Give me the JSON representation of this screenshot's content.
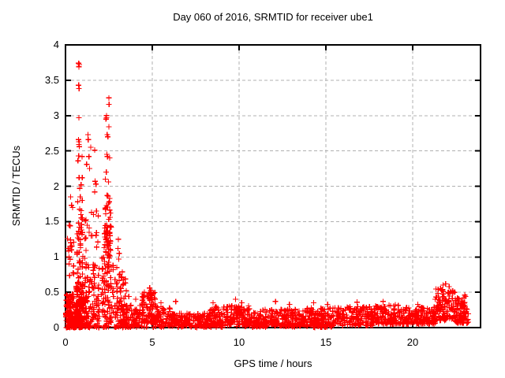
{
  "chart_data": {
    "type": "scatter",
    "title": "Day 060 of 2016, SRMTID for receiver ube1",
    "xlabel": "GPS time / hours",
    "ylabel": "SRMTID / TECUs",
    "series_name": "SRMTID",
    "xlim": [
      0,
      23.91
    ],
    "ylim": [
      0,
      4
    ],
    "xticks": [
      0,
      5,
      10,
      15,
      20
    ],
    "xtick_labels": [
      "0",
      "5",
      "10",
      "15",
      "20"
    ],
    "yticks": [
      0,
      0.5,
      1,
      1.5,
      2,
      2.5,
      3,
      3.5,
      4
    ],
    "ytick_labels": [
      "0",
      "0.5",
      "1",
      "1.5",
      "2",
      "2.5",
      "3",
      "3.5",
      "4"
    ],
    "grid": true,
    "legend_position": "none",
    "marker": {
      "shape": "plus",
      "size": 7,
      "color": "#ff0000"
    },
    "colors": {
      "marker": "#ff0000",
      "grid": "#b0b0b0",
      "axis": "#000000",
      "background": "#ffffff",
      "text": "#000000"
    },
    "notable_points": [
      [
        0.76,
        3.74
      ],
      [
        0.79,
        3.72
      ],
      [
        0.77,
        3.69
      ],
      [
        0.76,
        3.43
      ],
      [
        0.78,
        3.38
      ],
      [
        0.77,
        2.97
      ],
      [
        0.75,
        2.66
      ],
      [
        0.78,
        2.63
      ],
      [
        0.77,
        2.59
      ],
      [
        0.79,
        2.56
      ],
      [
        0.76,
        2.43
      ],
      [
        0.95,
        2.42
      ],
      [
        0.72,
        2.36
      ],
      [
        0.78,
        2.12
      ],
      [
        0.9,
        2.02
      ],
      [
        0.82,
        1.97
      ],
      [
        0.85,
        1.85
      ],
      [
        0.7,
        1.78
      ],
      [
        0.88,
        1.6
      ],
      [
        0.92,
        1.55
      ],
      [
        0.75,
        1.48
      ],
      [
        0.8,
        1.42
      ],
      [
        0.3,
        1.85
      ],
      [
        0.35,
        1.73
      ],
      [
        0.41,
        1.7
      ],
      [
        0.22,
        1.45
      ],
      [
        0.27,
        1.44
      ],
      [
        0.12,
        1.26
      ],
      [
        0.3,
        1.24
      ],
      [
        0.15,
        1.12
      ],
      [
        0.35,
        1.1
      ],
      [
        0.2,
        1.0
      ],
      [
        1.3,
        2.73
      ],
      [
        1.31,
        2.66
      ],
      [
        1.45,
        2.55
      ],
      [
        1.68,
        2.51
      ],
      [
        1.35,
        2.42
      ],
      [
        1.22,
        2.31
      ],
      [
        1.38,
        2.25
      ],
      [
        1.7,
        2.07
      ],
      [
        1.76,
        2.03
      ],
      [
        1.68,
        1.92
      ],
      [
        1.78,
        1.65
      ],
      [
        1.5,
        1.63
      ],
      [
        1.62,
        1.6
      ],
      [
        1.88,
        1.58
      ],
      [
        1.25,
        1.45
      ],
      [
        1.55,
        1.3
      ],
      [
        2.5,
        3.25
      ],
      [
        2.51,
        3.16
      ],
      [
        2.36,
        3.0
      ],
      [
        2.37,
        2.97
      ],
      [
        2.33,
        2.95
      ],
      [
        2.5,
        2.84
      ],
      [
        2.4,
        2.73
      ],
      [
        2.44,
        2.7
      ],
      [
        2.38,
        2.45
      ],
      [
        2.42,
        2.42
      ],
      [
        2.55,
        2.4
      ],
      [
        2.35,
        2.2
      ],
      [
        2.3,
        2.1
      ],
      [
        2.48,
        2.06
      ],
      [
        2.4,
        1.87
      ],
      [
        2.45,
        1.86
      ],
      [
        2.53,
        1.78
      ],
      [
        2.6,
        1.62
      ],
      [
        3.05,
        1.25
      ],
      [
        3.02,
        1.12
      ],
      [
        3.1,
        1.05
      ],
      [
        3.07,
        0.97
      ],
      [
        2.95,
        0.85
      ],
      [
        3.2,
        0.72
      ],
      [
        3.3,
        0.6
      ],
      [
        3.15,
        0.55
      ],
      [
        3.5,
        0.52
      ],
      [
        3.65,
        0.44
      ],
      [
        4.05,
        0.4
      ],
      [
        4.85,
        0.56
      ],
      [
        4.9,
        0.53
      ],
      [
        4.95,
        0.5
      ],
      [
        4.8,
        0.48
      ],
      [
        5.5,
        0.35
      ],
      [
        6.35,
        0.37
      ],
      [
        8.5,
        0.35
      ],
      [
        9.8,
        0.4
      ],
      [
        10.15,
        0.35
      ],
      [
        12.1,
        0.37
      ],
      [
        12.9,
        0.33
      ],
      [
        14.3,
        0.35
      ],
      [
        15.1,
        0.33
      ],
      [
        16.8,
        0.36
      ],
      [
        18.3,
        0.37
      ],
      [
        20.3,
        0.33
      ],
      [
        21.6,
        0.55
      ],
      [
        21.75,
        0.6
      ],
      [
        21.9,
        0.62
      ],
      [
        22.1,
        0.58
      ],
      [
        22.3,
        0.52
      ],
      [
        22.85,
        0.38
      ],
      [
        22.95,
        0.42
      ],
      [
        23.0,
        0.46
      ],
      [
        23.05,
        0.44
      ]
    ],
    "dense_bands": [
      [
        0.02,
        0.55,
        0.0,
        0.48,
        110,
        1.6
      ],
      [
        0.05,
        0.5,
        0.5,
        1.3,
        12,
        1.0
      ],
      [
        0.6,
        1.05,
        0.04,
        0.65,
        130,
        1.4
      ],
      [
        0.62,
        1.02,
        0.65,
        1.35,
        28,
        1.0
      ],
      [
        0.7,
        1.0,
        1.35,
        2.2,
        12,
        1.0
      ],
      [
        1.08,
        1.95,
        0.05,
        0.9,
        95,
        1.5
      ],
      [
        1.1,
        1.9,
        0.9,
        1.55,
        14,
        1.0
      ],
      [
        2.05,
        2.78,
        0.05,
        1.0,
        85,
        1.2
      ],
      [
        2.2,
        2.65,
        1.0,
        1.45,
        48,
        1.0
      ],
      [
        2.25,
        2.6,
        1.45,
        2.0,
        12,
        1.0
      ],
      [
        2.85,
        3.45,
        0.04,
        0.8,
        60,
        1.5
      ],
      [
        3.4,
        4.3,
        0.02,
        0.32,
        75,
        1.3
      ],
      [
        4.4,
        5.25,
        0.06,
        0.5,
        95,
        1.2
      ],
      [
        5.25,
        6.1,
        0.02,
        0.3,
        70,
        1.6
      ],
      [
        6.1,
        8.3,
        0.02,
        0.2,
        170,
        1.5
      ],
      [
        8.3,
        9.4,
        0.03,
        0.3,
        100,
        1.6
      ],
      [
        9.4,
        10.6,
        0.04,
        0.32,
        110,
        1.6
      ],
      [
        10.6,
        13.6,
        0.02,
        0.26,
        230,
        1.7
      ],
      [
        13.6,
        16.2,
        0.03,
        0.28,
        200,
        1.7
      ],
      [
        16.2,
        17.8,
        0.03,
        0.3,
        130,
        1.7
      ],
      [
        17.8,
        19.2,
        0.05,
        0.33,
        120,
        1.6
      ],
      [
        19.2,
        21.3,
        0.05,
        0.3,
        170,
        1.6
      ],
      [
        21.3,
        22.45,
        0.1,
        0.55,
        115,
        1.2
      ],
      [
        22.45,
        23.2,
        0.06,
        0.42,
        85,
        1.3
      ],
      [
        0.3,
        4.2,
        0.0,
        0.03,
        70,
        1.0
      ],
      [
        4.2,
        15.5,
        0.0,
        0.02,
        60,
        1.0
      ]
    ]
  }
}
